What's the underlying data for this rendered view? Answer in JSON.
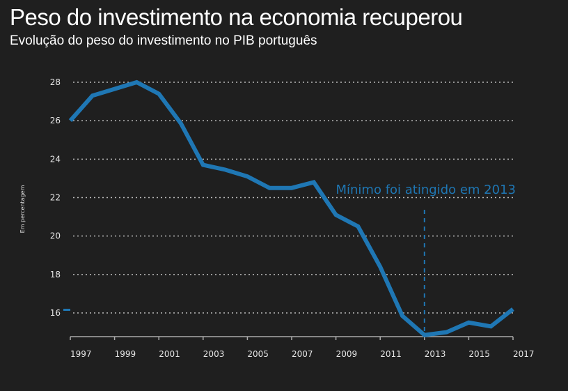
{
  "header": {
    "title": "Peso do investimento na economia recuperou",
    "subtitle": "Evolução do peso do investimento no PIB português"
  },
  "chart_data": {
    "type": "line",
    "title": "Peso do investimento na economia recuperou",
    "subtitle": "Evolução do peso do investimento no PIB português",
    "xlabel": "",
    "ylabel": "Em percentagem",
    "x": [
      1997,
      1998,
      1999,
      2000,
      2001,
      2002,
      2003,
      2004,
      2005,
      2006,
      2007,
      2008,
      2009,
      2010,
      2011,
      2012,
      2013,
      2014,
      2015,
      2016,
      2017
    ],
    "series": [
      {
        "name": "Peso do investimento no PIB",
        "color": "#1f77b4",
        "values": [
          26.0,
          27.3,
          27.65,
          28.0,
          27.4,
          25.85,
          23.7,
          23.45,
          23.1,
          22.5,
          22.5,
          22.8,
          21.1,
          20.5,
          18.4,
          15.85,
          14.85,
          15.0,
          15.5,
          15.3,
          16.2
        ]
      }
    ],
    "xlim": [
      1997,
      2017
    ],
    "ylim": [
      14.8,
      28.0
    ],
    "x_ticks": [
      1997,
      1999,
      2001,
      2003,
      2005,
      2007,
      2009,
      2011,
      2013,
      2015,
      2017
    ],
    "x_tick_labels": [
      "1997",
      "1999",
      "2001",
      "2003",
      "2005",
      "2007",
      "2009",
      "2011",
      "2013",
      "2015",
      "2017"
    ],
    "y_ticks": [
      16,
      18,
      20,
      22,
      24,
      26,
      28
    ],
    "y_tick_labels": [
      "16",
      "18",
      "20",
      "22",
      "24",
      "26",
      "28"
    ],
    "grid": "horizontal-dotted",
    "annotation": {
      "text": "Mínimo foi atingido em 2013",
      "x": 2013,
      "color": "#1f77b4"
    },
    "colors": {
      "background": "#1f1f1f",
      "grid": "#bbbbbb",
      "axis": "#aaaaaa",
      "text": "#ffffff"
    }
  }
}
